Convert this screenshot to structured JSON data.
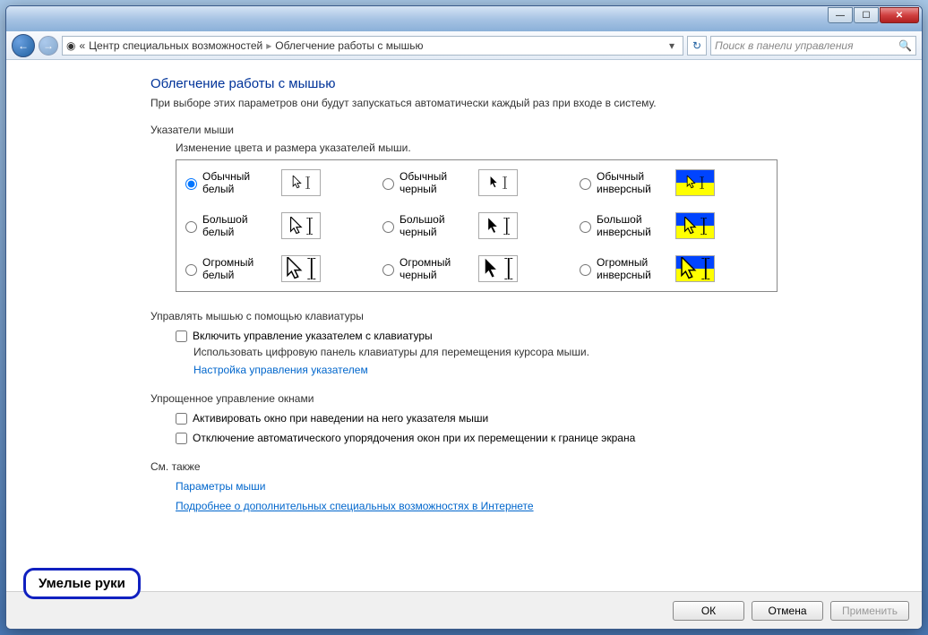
{
  "titlebar": {
    "minimize": "—",
    "maximize": "☐",
    "close": "✕"
  },
  "nav": {
    "back_icon": "←",
    "forward_icon": "→",
    "globe_icon": "◉",
    "chevrons": "«",
    "crumb1": "Центр специальных возможностей",
    "sep": "▸",
    "crumb2": "Облегчение работы с мышью",
    "dropdown": "▾",
    "refresh": "↻",
    "search_placeholder": "Поиск в панели управления",
    "search_icon": "🔍"
  },
  "page": {
    "title": "Облегчение работы с мышью",
    "subtitle": "При выборе этих параметров они будут запускаться автоматически каждый раз при входе в систему.",
    "section_pointers": "Указатели мыши",
    "pointers_desc": "Изменение цвета и размера указателей мыши.",
    "pointer_options": [
      {
        "id": "p0",
        "label": "Обычный белый",
        "size": "s",
        "color": "white",
        "checked": true
      },
      {
        "id": "p1",
        "label": "Обычный черный",
        "size": "s",
        "color": "black",
        "checked": false
      },
      {
        "id": "p2",
        "label": "Обычный инверсный",
        "size": "s",
        "color": "inv",
        "checked": false
      },
      {
        "id": "p3",
        "label": "Большой белый",
        "size": "m",
        "color": "white",
        "checked": false
      },
      {
        "id": "p4",
        "label": "Большой черный",
        "size": "m",
        "color": "black",
        "checked": false
      },
      {
        "id": "p5",
        "label": "Большой инверсный",
        "size": "m",
        "color": "inv",
        "checked": false
      },
      {
        "id": "p6",
        "label": "Огромный белый",
        "size": "l",
        "color": "white",
        "checked": false
      },
      {
        "id": "p7",
        "label": "Огромный черный",
        "size": "l",
        "color": "black",
        "checked": false
      },
      {
        "id": "p8",
        "label": "Огромный инверсный",
        "size": "l",
        "color": "inv",
        "checked": false
      }
    ],
    "section_keyboard": "Управлять мышью с помощью клавиатуры",
    "keyboard_check": "Включить управление указателем с клавиатуры",
    "keyboard_desc": "Использовать цифровую панель клавиатуры для перемещения курсора мыши.",
    "keyboard_link": "Настройка управления указателем",
    "section_windows": "Упрощенное управление окнами",
    "windows_check1": "Активировать окно при наведении на него указателя мыши",
    "windows_check2": "Отключение автоматического упорядочения окон при их перемещении к границе экрана",
    "section_seealso": "См. также",
    "seealso_link1": "Параметры мыши",
    "seealso_link2": "Подробнее о дополнительных специальных возможностях в Интернете"
  },
  "buttons": {
    "ok": "ОК",
    "cancel": "Отмена",
    "apply": "Применить"
  },
  "watermark": "Умелые руки",
  "colors": {
    "title_color": "#003399",
    "link_color": "#0066cc",
    "border_color": "#888888"
  }
}
